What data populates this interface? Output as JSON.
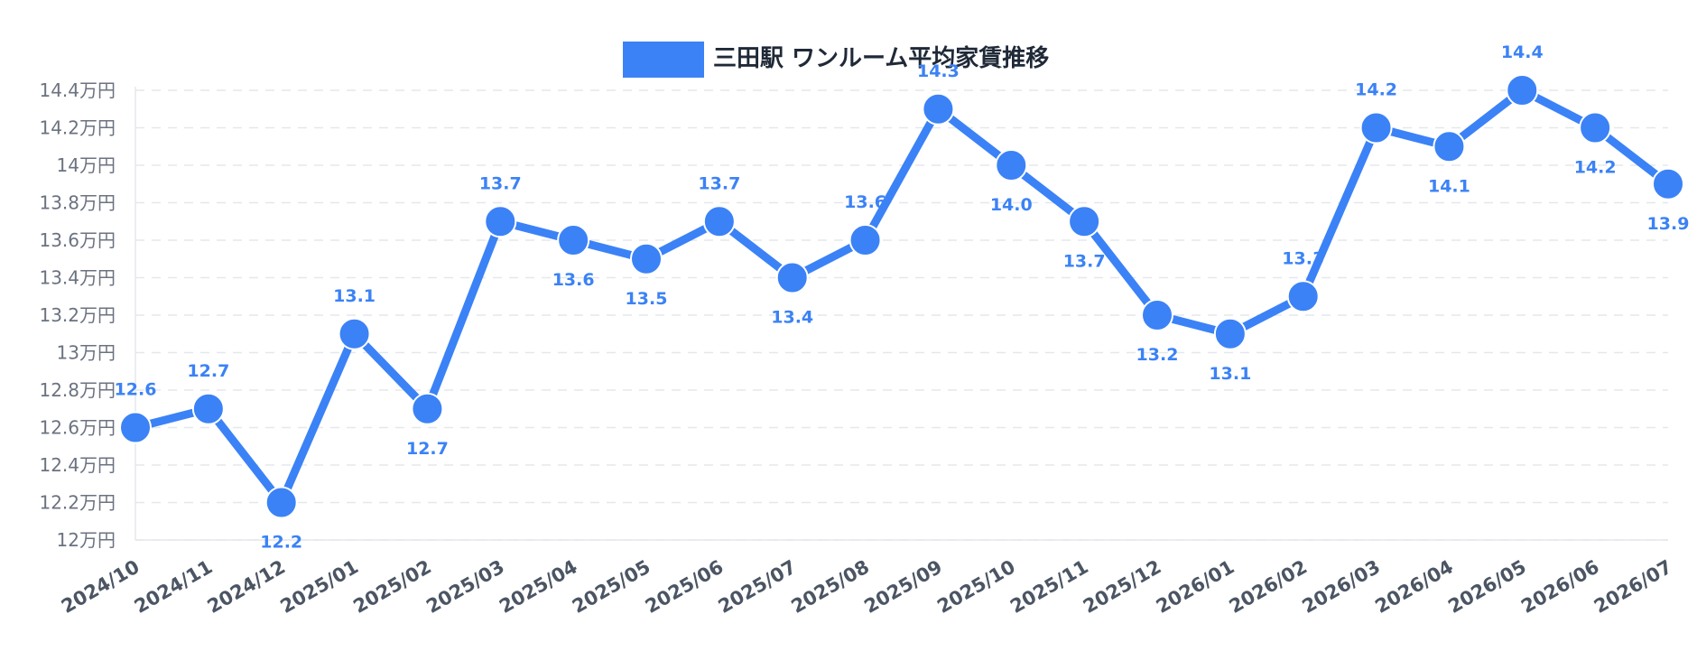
{
  "chart_data": {
    "type": "line",
    "legend": {
      "label": "三田駅 ワンルーム平均家賃推移",
      "position": "top-center"
    },
    "color": "#3b82f6",
    "grid": true,
    "categories": [
      "2024/10",
      "2024/11",
      "2024/12",
      "2025/01",
      "2025/02",
      "2025/03",
      "2025/04",
      "2025/05",
      "2025/06",
      "2025/07",
      "2025/08",
      "2025/09",
      "2025/10",
      "2025/11",
      "2025/12",
      "2026/01",
      "2026/02",
      "2026/03",
      "2026/04",
      "2026/05",
      "2026/06",
      "2026/07"
    ],
    "series": [
      {
        "name": "三田駅 ワンルーム平均家賃推移",
        "values": [
          12.6,
          12.7,
          12.2,
          13.1,
          12.7,
          13.7,
          13.6,
          13.5,
          13.7,
          13.4,
          13.6,
          14.3,
          14.0,
          13.7,
          13.2,
          13.1,
          13.3,
          14.2,
          14.1,
          14.4,
          14.2,
          13.9
        ],
        "data_labels": [
          "12.6",
          "12.7",
          "12.2",
          "13.1",
          "12.7",
          "13.7",
          "13.6",
          "13.5",
          "13.7",
          "13.4",
          "13.6",
          "14.3",
          "14.0",
          "13.7",
          "13.2",
          "13.1",
          "13.3",
          "14.2",
          "14.1",
          "14.4",
          "14.2",
          "13.9"
        ]
      }
    ],
    "ylim": [
      12,
      14.4
    ],
    "yticks": [
      {
        "value": 12,
        "label": "12万円"
      },
      {
        "value": 12.2,
        "label": "12.2万円"
      },
      {
        "value": 12.4,
        "label": "12.4万円"
      },
      {
        "value": 12.6,
        "label": "12.6万円"
      },
      {
        "value": 12.8,
        "label": "12.8万円"
      },
      {
        "value": 13,
        "label": "13万円"
      },
      {
        "value": 13.2,
        "label": "13.2万円"
      },
      {
        "value": 13.4,
        "label": "13.4万円"
      },
      {
        "value": 13.6,
        "label": "13.6万円"
      },
      {
        "value": 13.8,
        "label": "13.8万円"
      },
      {
        "value": 14,
        "label": "14万円"
      },
      {
        "value": 14.2,
        "label": "14.2万円"
      },
      {
        "value": 14.4,
        "label": "14.4万円"
      }
    ]
  }
}
